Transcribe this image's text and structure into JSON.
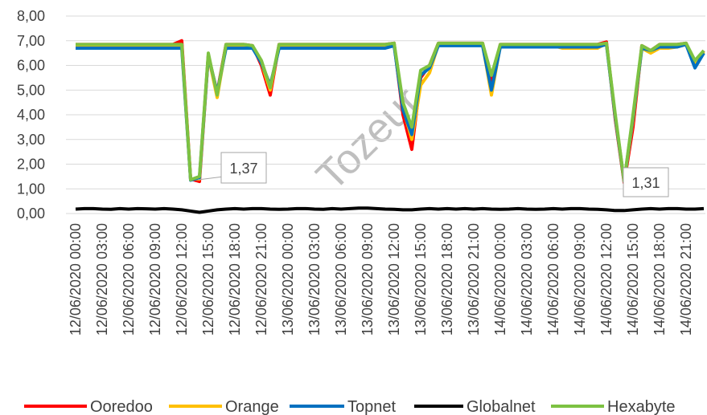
{
  "chart_data": {
    "type": "line",
    "categories": [
      "12/06/2020 00:00",
      null,
      null,
      "12/06/2020 03:00",
      null,
      null,
      "12/06/2020 06:00",
      null,
      null,
      "12/06/2020 09:00",
      null,
      null,
      "12/06/2020 12:00",
      null,
      null,
      "12/06/2020 15:00",
      null,
      null,
      "12/06/2020 18:00",
      null,
      null,
      "12/06/2020 21:00",
      null,
      null,
      "13/06/2020 00:00",
      null,
      null,
      "13/06/2020 03:00",
      null,
      null,
      "13/06/2020 06:00",
      null,
      null,
      "13/06/2020 09:00",
      null,
      null,
      "13/06/2020 12:00",
      null,
      null,
      "13/06/2020 15:00",
      null,
      null,
      "13/06/2020 18:00",
      null,
      null,
      "13/06/2020 21:00",
      null,
      null,
      "14/06/2020 00:00",
      null,
      null,
      "14/06/2020 03:00",
      null,
      null,
      "14/06/2020 06:00",
      null,
      null,
      "14/06/2020 09:00",
      null,
      null,
      "14/06/2020 12:00",
      null,
      null,
      "14/06/2020 15:00",
      null,
      null,
      "14/06/2020 18:00",
      null,
      null,
      "14/06/2020 21:00",
      null,
      null
    ],
    "series": [
      {
        "name": "Ooredoo",
        "color": "#ff0000",
        "values": [
          6.85,
          6.85,
          6.85,
          6.85,
          6.85,
          6.85,
          6.85,
          6.85,
          6.85,
          6.85,
          6.85,
          6.85,
          7.0,
          1.4,
          1.3,
          6.4,
          4.9,
          6.85,
          6.85,
          6.85,
          6.8,
          6.0,
          4.8,
          6.85,
          6.85,
          6.85,
          6.85,
          6.85,
          6.85,
          6.85,
          6.85,
          6.85,
          6.85,
          6.85,
          6.85,
          6.85,
          6.9,
          4.0,
          2.6,
          5.5,
          6.0,
          6.9,
          6.9,
          6.9,
          6.9,
          6.9,
          6.9,
          5.4,
          6.85,
          6.85,
          6.85,
          6.85,
          6.85,
          6.85,
          6.85,
          6.85,
          6.85,
          6.85,
          6.85,
          6.85,
          6.95,
          3.8,
          1.25,
          3.5,
          6.8,
          6.6,
          6.85,
          6.85,
          6.85,
          6.9,
          6.1,
          6.6
        ]
      },
      {
        "name": "Orange",
        "color": "#ffc000",
        "values": [
          6.8,
          6.8,
          6.8,
          6.8,
          6.8,
          6.8,
          6.8,
          6.8,
          6.8,
          6.8,
          6.8,
          6.8,
          6.8,
          1.4,
          1.4,
          6.4,
          4.7,
          6.8,
          6.8,
          6.8,
          6.75,
          6.1,
          5.0,
          6.8,
          6.8,
          6.8,
          6.8,
          6.8,
          6.8,
          6.8,
          6.8,
          6.8,
          6.8,
          6.8,
          6.8,
          6.8,
          6.85,
          4.3,
          3.0,
          5.2,
          5.7,
          6.85,
          6.85,
          6.85,
          6.85,
          6.85,
          6.85,
          4.8,
          6.8,
          6.8,
          6.8,
          6.8,
          6.8,
          6.8,
          6.8,
          6.7,
          6.7,
          6.7,
          6.7,
          6.7,
          6.9,
          3.9,
          1.3,
          3.8,
          6.7,
          6.5,
          6.7,
          6.7,
          6.75,
          6.85,
          6.1,
          6.55
        ]
      },
      {
        "name": "Topnet",
        "color": "#0070c0",
        "values": [
          6.7,
          6.7,
          6.7,
          6.7,
          6.7,
          6.7,
          6.7,
          6.7,
          6.7,
          6.7,
          6.7,
          6.7,
          6.7,
          1.35,
          1.45,
          6.4,
          4.9,
          6.7,
          6.7,
          6.7,
          6.7,
          6.1,
          5.2,
          6.7,
          6.7,
          6.7,
          6.7,
          6.7,
          6.7,
          6.7,
          6.7,
          6.7,
          6.7,
          6.7,
          6.7,
          6.7,
          6.8,
          4.2,
          3.2,
          5.6,
          5.9,
          6.8,
          6.8,
          6.8,
          6.8,
          6.8,
          6.8,
          5.0,
          6.75,
          6.75,
          6.75,
          6.75,
          6.75,
          6.75,
          6.75,
          6.75,
          6.75,
          6.75,
          6.75,
          6.75,
          6.85,
          3.9,
          1.3,
          3.9,
          6.7,
          6.6,
          6.75,
          6.75,
          6.75,
          6.85,
          5.9,
          6.5
        ]
      },
      {
        "name": "Globalnet",
        "color": "#000000",
        "values": [
          0.18,
          0.2,
          0.2,
          0.18,
          0.17,
          0.2,
          0.18,
          0.2,
          0.19,
          0.18,
          0.2,
          0.18,
          0.15,
          0.1,
          0.05,
          0.1,
          0.15,
          0.18,
          0.2,
          0.18,
          0.2,
          0.2,
          0.18,
          0.17,
          0.18,
          0.2,
          0.2,
          0.18,
          0.17,
          0.2,
          0.18,
          0.2,
          0.22,
          0.22,
          0.2,
          0.18,
          0.17,
          0.15,
          0.15,
          0.18,
          0.2,
          0.18,
          0.2,
          0.18,
          0.2,
          0.18,
          0.2,
          0.18,
          0.17,
          0.18,
          0.2,
          0.18,
          0.17,
          0.18,
          0.2,
          0.18,
          0.2,
          0.2,
          0.18,
          0.17,
          0.15,
          0.12,
          0.12,
          0.15,
          0.18,
          0.2,
          0.18,
          0.2,
          0.2,
          0.18,
          0.18,
          0.2
        ]
      },
      {
        "name": "Hexabyte",
        "color": "#7dc242",
        "values": [
          6.85,
          6.85,
          6.85,
          6.85,
          6.85,
          6.85,
          6.85,
          6.85,
          6.85,
          6.85,
          6.85,
          6.85,
          6.85,
          1.37,
          1.5,
          6.5,
          4.8,
          6.85,
          6.85,
          6.85,
          6.8,
          6.2,
          5.1,
          6.85,
          6.85,
          6.85,
          6.85,
          6.85,
          6.85,
          6.85,
          6.85,
          6.85,
          6.85,
          6.85,
          6.85,
          6.85,
          6.9,
          4.5,
          3.5,
          5.8,
          6.0,
          6.9,
          6.9,
          6.9,
          6.9,
          6.9,
          6.9,
          5.6,
          6.85,
          6.85,
          6.85,
          6.85,
          6.85,
          6.85,
          6.85,
          6.85,
          6.85,
          6.85,
          6.85,
          6.85,
          6.9,
          4.0,
          1.31,
          4.0,
          6.8,
          6.6,
          6.85,
          6.85,
          6.85,
          6.9,
          6.2,
          6.6
        ]
      }
    ],
    "ylim": [
      0,
      8
    ],
    "yticks": [
      {
        "value": 0,
        "label": "0,00"
      },
      {
        "value": 1,
        "label": "1,00"
      },
      {
        "value": 2,
        "label": "2,00"
      },
      {
        "value": 3,
        "label": "3,00"
      },
      {
        "value": 4,
        "label": "4,00"
      },
      {
        "value": 5,
        "label": "5,00"
      },
      {
        "value": 6,
        "label": "6,00"
      },
      {
        "value": 7,
        "label": "7,00"
      },
      {
        "value": 8,
        "label": "8,00"
      }
    ],
    "grid": true,
    "legend": "bottom",
    "annotations": [
      "1,37",
      "1,31"
    ],
    "watermark": "Tozeur"
  }
}
